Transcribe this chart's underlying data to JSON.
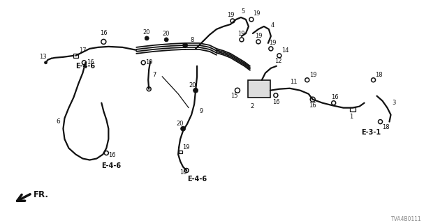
{
  "background_color": "#ffffff",
  "diagram_id": "TVA4B0111",
  "line_color": "#111111",
  "figsize": [
    6.4,
    3.2
  ],
  "dpi": 100,
  "lw_hose": 1.6,
  "lw_thin": 1.0
}
